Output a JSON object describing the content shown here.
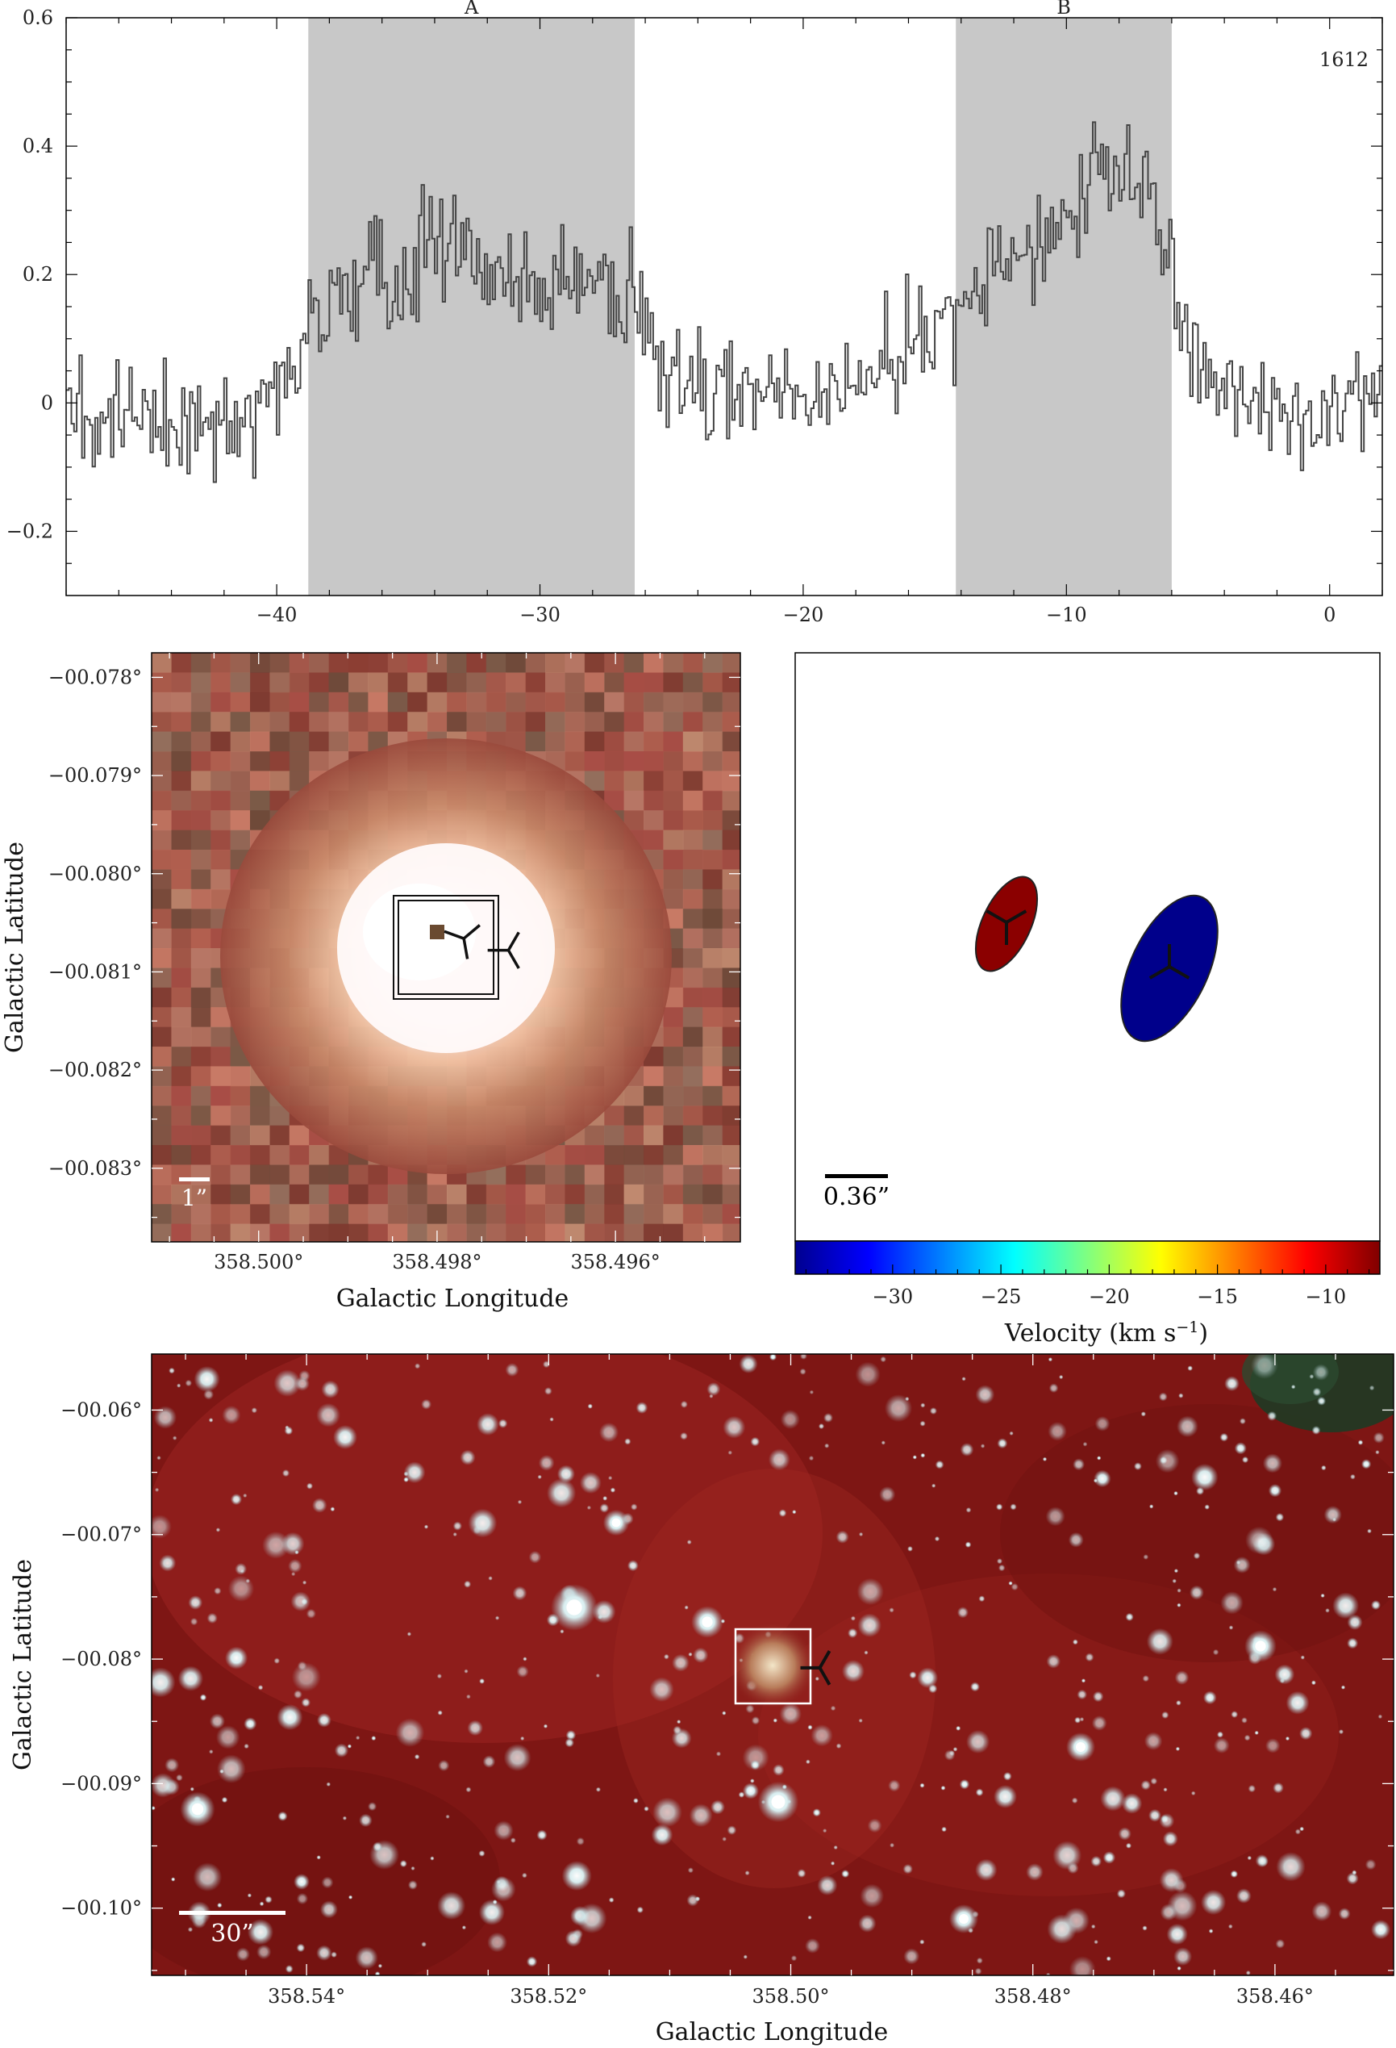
{
  "chart_data": [
    {
      "type": "line",
      "panel": "spectrum",
      "series_label": "1612",
      "regions": [
        {
          "label": "A",
          "x_start": -38.8,
          "x_end": -26.4
        },
        {
          "label": "B",
          "x_start": -14.2,
          "x_end": -6.0
        }
      ],
      "xlim": [
        -48,
        2
      ],
      "ylim": [
        -0.3,
        0.6
      ],
      "xticks": [
        "−40",
        "−30",
        "−20",
        "−10",
        "0"
      ],
      "xtick_values": [
        -40,
        -30,
        -20,
        -10,
        0
      ],
      "yticks": [
        "−0.2",
        "0",
        "0.2",
        "0.4",
        "0.6"
      ],
      "ytick_values": [
        -0.2,
        0,
        0.2,
        0.4,
        0.6
      ],
      "step": true,
      "grid": false,
      "region_color": "#c8c8c8",
      "line_color": "#444444",
      "shape": [
        {
          "x": -48,
          "y": 0.0
        },
        {
          "x": -45,
          "y": -0.03
        },
        {
          "x": -42,
          "y": -0.04
        },
        {
          "x": -39.5,
          "y": 0.04
        },
        {
          "x": -38.5,
          "y": 0.13
        },
        {
          "x": -36,
          "y": 0.2
        },
        {
          "x": -34,
          "y": 0.25
        },
        {
          "x": -32,
          "y": 0.2
        },
        {
          "x": -30,
          "y": 0.19
        },
        {
          "x": -28,
          "y": 0.2
        },
        {
          "x": -26.4,
          "y": 0.13
        },
        {
          "x": -25.5,
          "y": 0.05
        },
        {
          "x": -22,
          "y": 0.0
        },
        {
          "x": -19,
          "y": 0.02
        },
        {
          "x": -16,
          "y": 0.07
        },
        {
          "x": -14.2,
          "y": 0.14
        },
        {
          "x": -12,
          "y": 0.22
        },
        {
          "x": -10,
          "y": 0.3
        },
        {
          "x": -8.5,
          "y": 0.38
        },
        {
          "x": -7,
          "y": 0.33
        },
        {
          "x": -6,
          "y": 0.2
        },
        {
          "x": -5,
          "y": 0.06
        },
        {
          "x": -3,
          "y": 0.0
        },
        {
          "x": 0,
          "y": -0.04
        },
        {
          "x": 2,
          "y": 0.02
        }
      ]
    },
    {
      "type": "image",
      "panel": "zoom-image",
      "xlabel": "Galactic Longitude",
      "ylabel": "Galactic Latitude",
      "xticks": [
        "358.500°",
        "358.498°",
        "358.496°"
      ],
      "xtick_values": [
        358.5,
        358.498,
        358.496
      ],
      "yticks": [
        "−00.078°",
        "−00.079°",
        "−00.080°",
        "−00.081°",
        "−00.082°",
        "−00.083°"
      ],
      "ytick_values": [
        -0.078,
        -0.079,
        -0.08,
        -0.081,
        -0.082,
        -0.083
      ],
      "xlim": [
        358.5012,
        358.4946
      ],
      "ylim": [
        -0.08375,
        -0.07775
      ],
      "scalebar_label": "1”",
      "markers": [
        {
          "l": 358.4977,
          "b": -0.08066
        },
        {
          "l": 358.4972,
          "b": -0.08078
        }
      ]
    },
    {
      "type": "scatter",
      "panel": "maser-components",
      "scalebar_label": "0.36”",
      "components": [
        {
          "velocity": -8,
          "color": "#8b0000"
        },
        {
          "velocity": -34,
          "color": "#00008b"
        }
      ],
      "colorbar": {
        "label": "Velocity (km s−1)",
        "vlim": [
          -34.5,
          -7.5
        ],
        "ticks": [
          "−30",
          "−25",
          "−20",
          "−15",
          "−10"
        ],
        "tick_values": [
          -30,
          -25,
          -20,
          -15,
          -10
        ],
        "colors": [
          "#00008f",
          "#0000ff",
          "#0080ff",
          "#00ffff",
          "#80ff80",
          "#ffff00",
          "#ff8000",
          "#ff0000",
          "#800000"
        ]
      }
    },
    {
      "type": "image",
      "panel": "wide-field-image",
      "xlabel": "Galactic Longitude",
      "ylabel": "Galactic Latitude",
      "xticks": [
        "358.54°",
        "358.52°",
        "358.50°",
        "358.48°",
        "358.46°"
      ],
      "xtick_values": [
        358.54,
        358.52,
        358.5,
        358.48,
        358.46
      ],
      "yticks": [
        "−00.06°",
        "−00.07°",
        "−00.08°",
        "−00.09°",
        "−00.10°"
      ],
      "ytick_values": [
        -0.06,
        -0.07,
        -0.08,
        -0.09,
        -0.1
      ],
      "xlim": [
        358.5528,
        358.4502
      ],
      "ylim": [
        -0.1054,
        -0.0555
      ],
      "scalebar_label": "30”",
      "marker": {
        "l": 358.4976,
        "b": -0.0807
      }
    }
  ]
}
